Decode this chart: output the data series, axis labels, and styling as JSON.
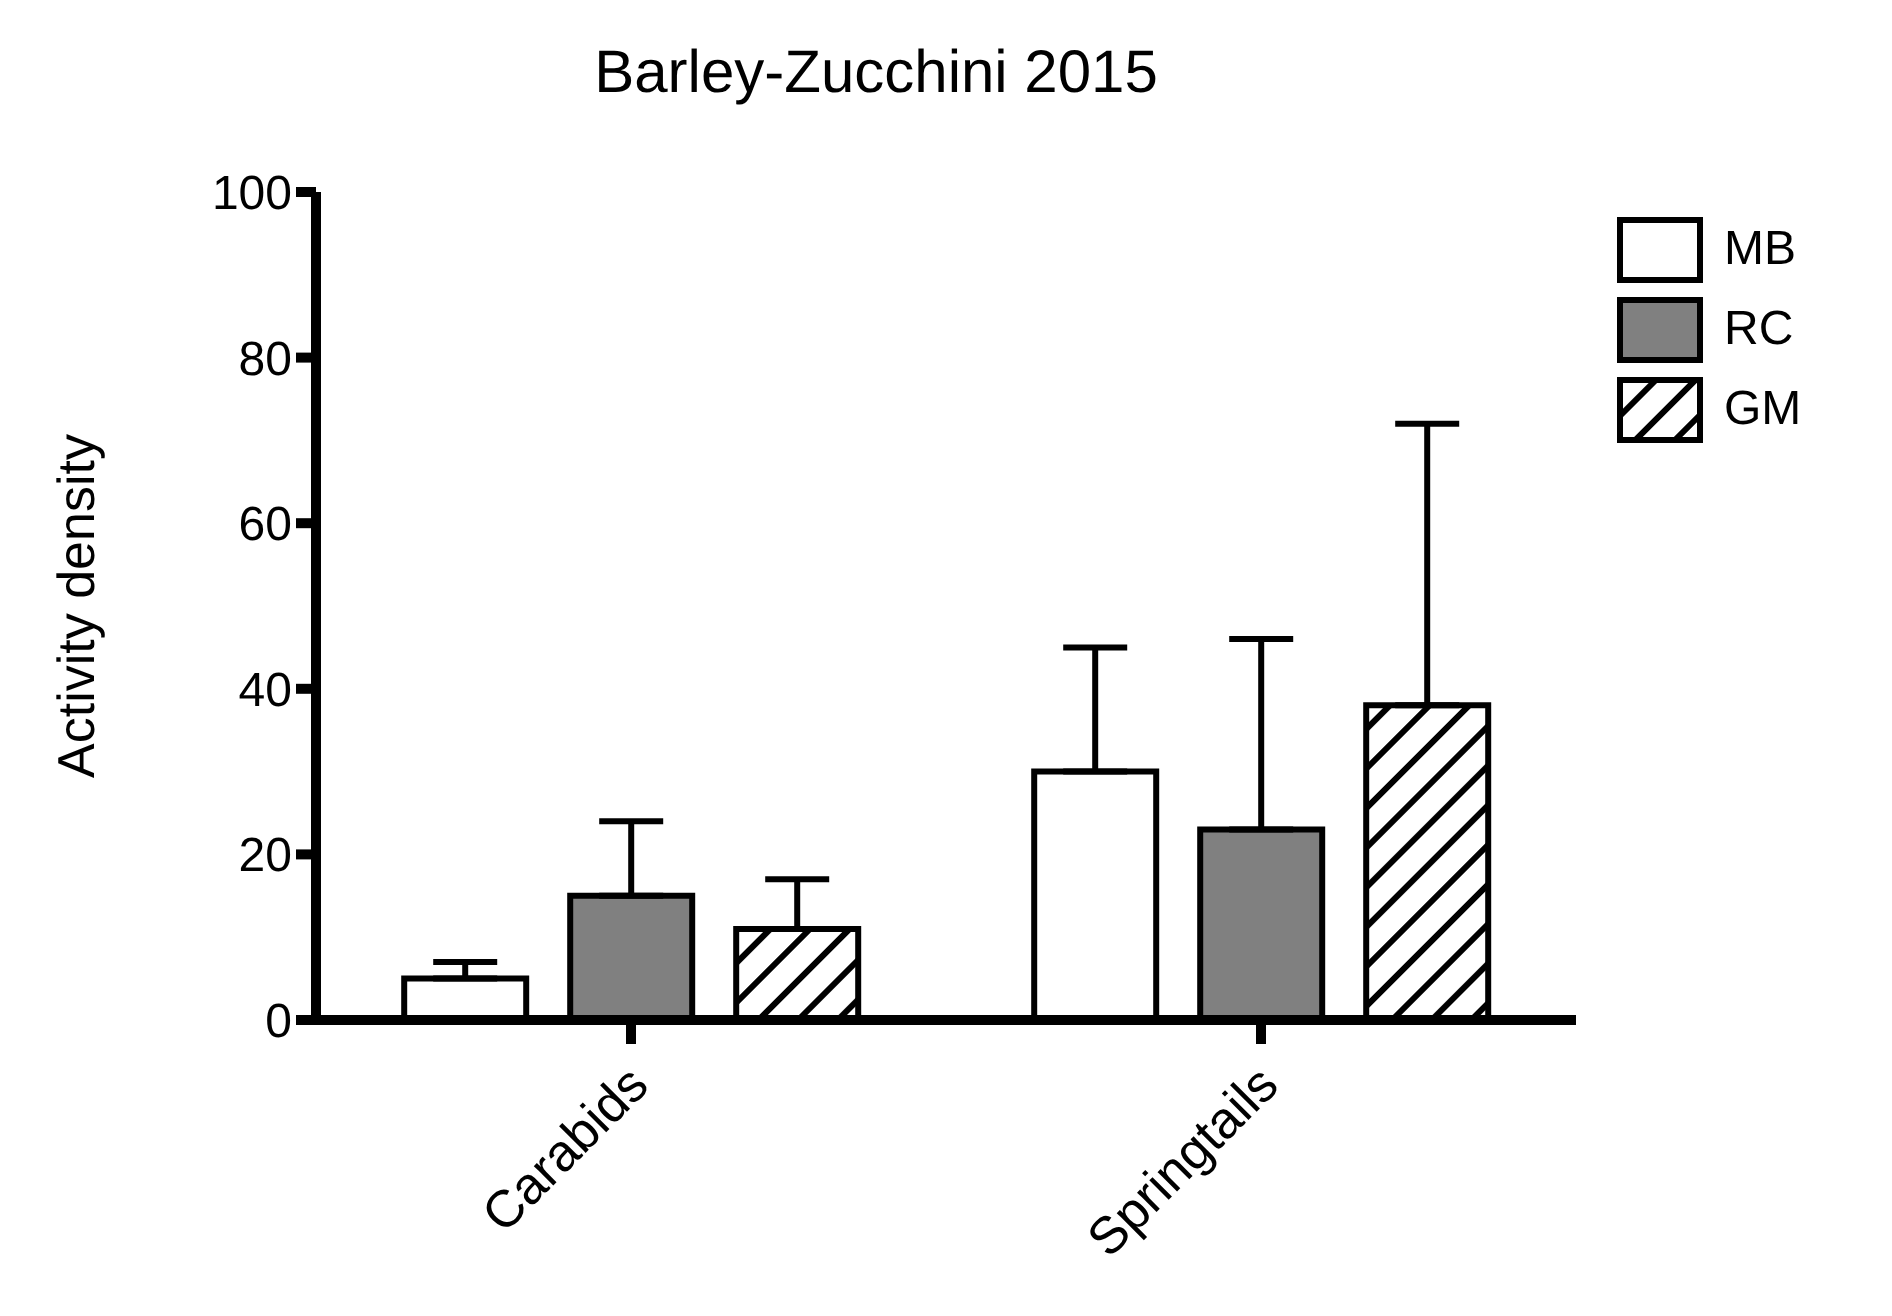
{
  "chart_data": {
    "type": "bar",
    "title": "Barley-Zucchini 2015",
    "ylabel": "Activity density",
    "categories": [
      "Carabids",
      "Springtails"
    ],
    "series": [
      {
        "name": "MB",
        "color": "#ffffff",
        "values": [
          5,
          30
        ],
        "errors": [
          [
            5,
            7
          ],
          [
            30,
            45
          ]
        ]
      },
      {
        "name": "RC",
        "color": "#808080",
        "values": [
          15,
          23
        ],
        "errors": [
          [
            15,
            24
          ],
          [
            23,
            46
          ]
        ]
      },
      {
        "name": "GM",
        "color": "#000000",
        "values": [
          11,
          38
        ],
        "errors": [
          [
            11,
            17
          ],
          [
            38,
            72
          ]
        ]
      }
    ],
    "ylim": [
      0,
      100
    ],
    "yticks": [
      0,
      20,
      40,
      60,
      80,
      100
    ],
    "grid": false,
    "legend": "top right"
  }
}
